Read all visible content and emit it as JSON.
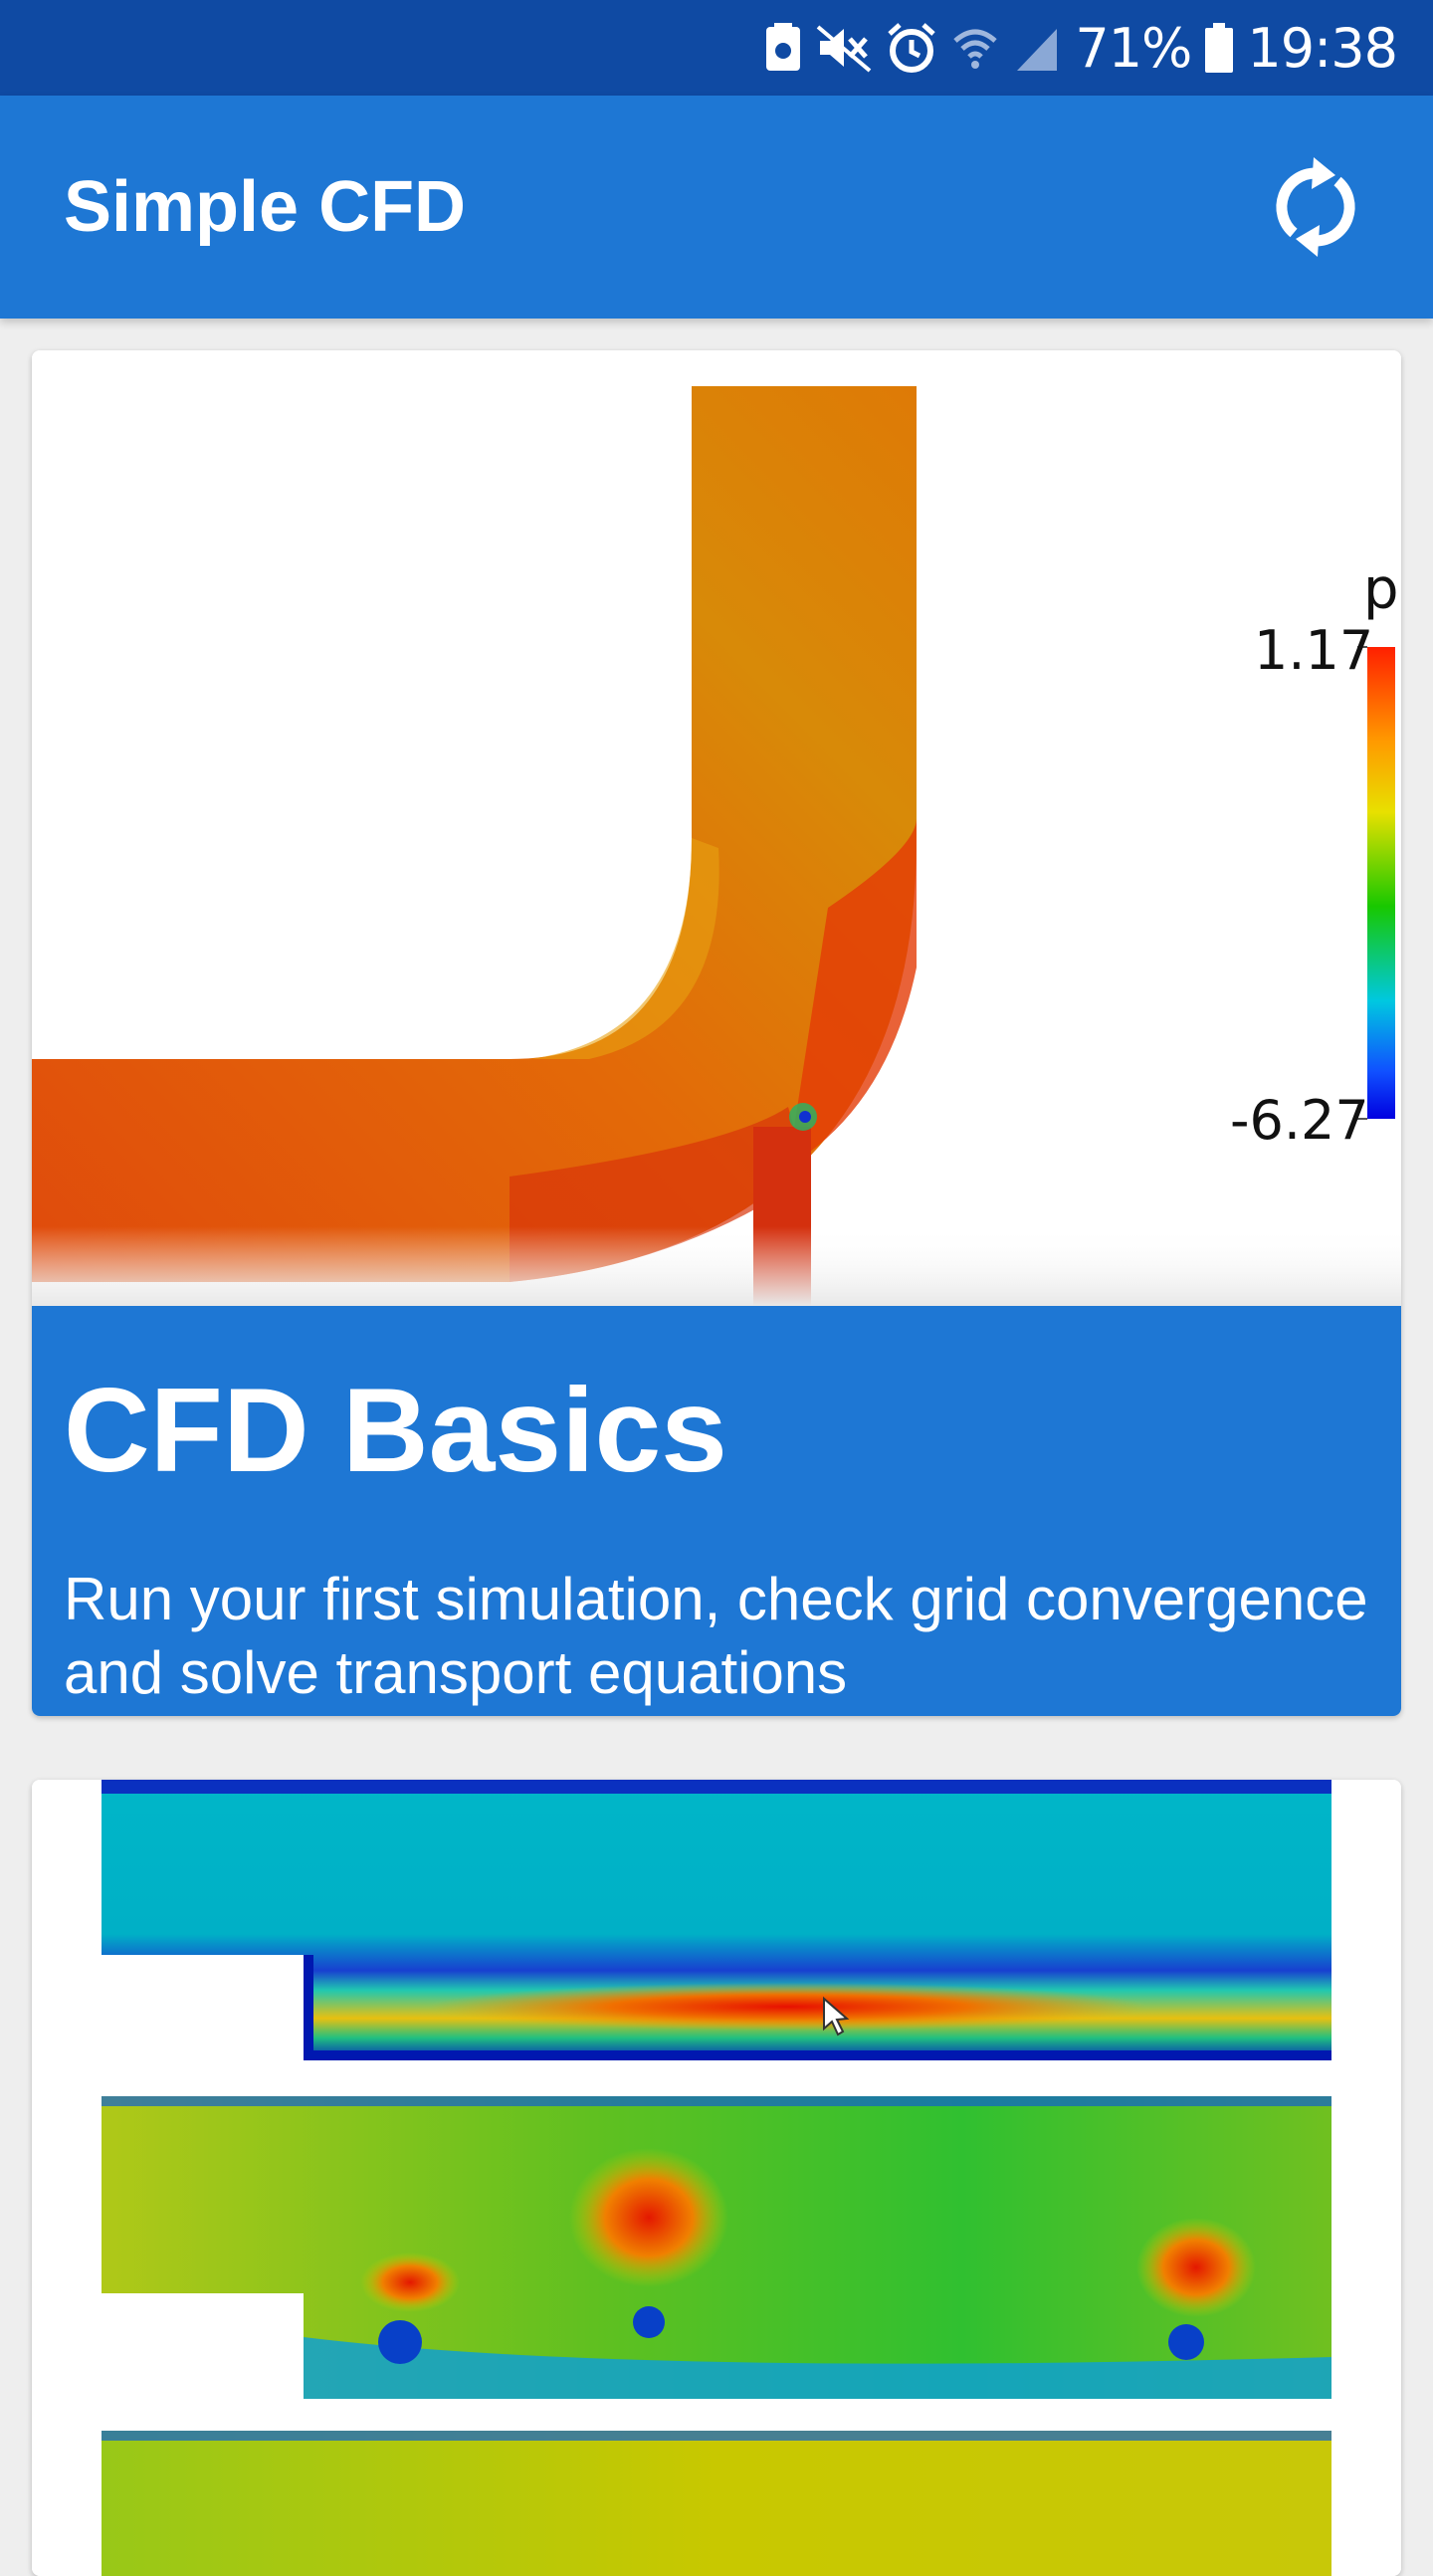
{
  "status_bar": {
    "battery_percent": "71%",
    "time": "19:38",
    "icons": [
      "storage-icon",
      "mute-icon",
      "alarm-icon",
      "wifi-icon",
      "signal-icon",
      "battery-icon"
    ]
  },
  "app_bar": {
    "title": "Simple CFD",
    "refresh_icon": "refresh-icon"
  },
  "cards": [
    {
      "title": "CFD Basics",
      "description": "Run your first simulation, check grid convergence and solve transport equations",
      "legend": {
        "variable": "p",
        "max": "1.17",
        "min": "-6.27"
      }
    },
    {
      "title": "",
      "description": ""
    }
  ],
  "colors": {
    "status_bar": "#0f4aa3",
    "primary": "#1e77d4",
    "background": "#eeeeee"
  }
}
